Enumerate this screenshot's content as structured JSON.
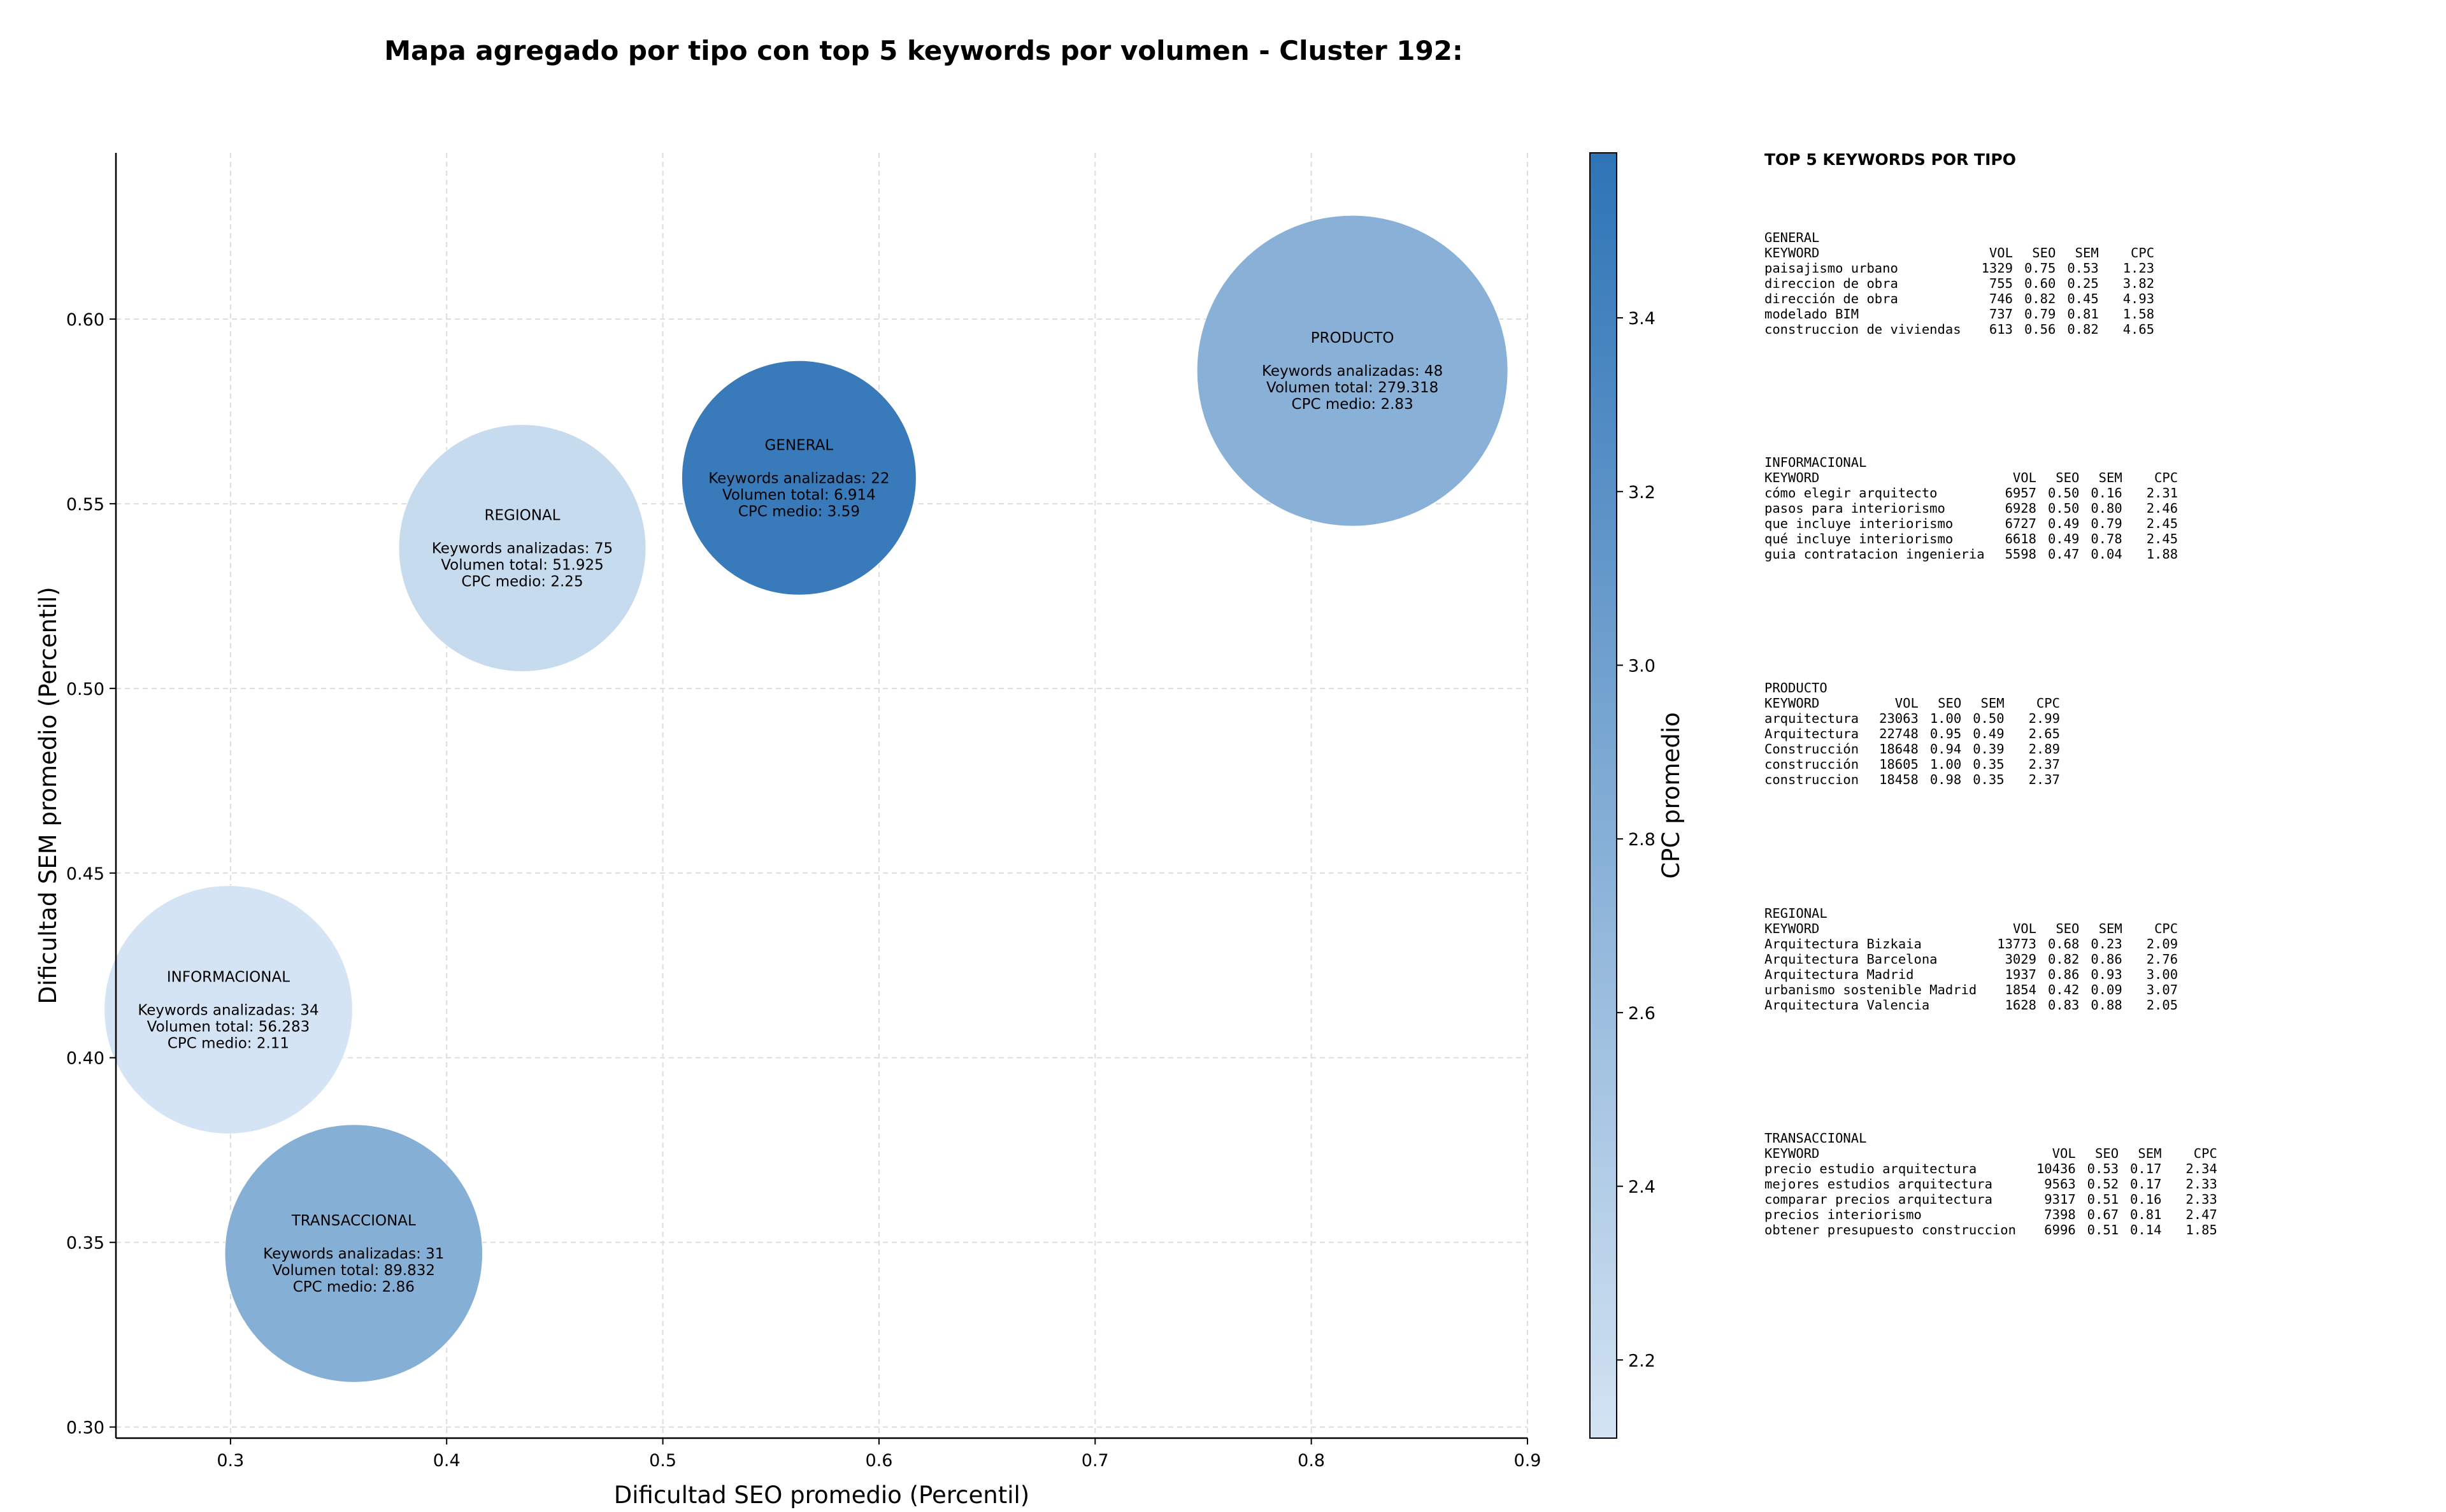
{
  "chart_data": {
    "type": "scatter",
    "title": "Mapa agregado por tipo con top 5 keywords por volumen - Cluster 192:",
    "xlabel": "Dificultad SEO promedio (Percentil)",
    "ylabel": "Dificultad SEM promedio (Percentil)",
    "xlim": [
      0.247,
      0.9
    ],
    "ylim": [
      0.297,
      0.645
    ],
    "xticks": [
      "0.3",
      "0.4",
      "0.5",
      "0.6",
      "0.7",
      "0.8",
      "0.9"
    ],
    "yticks": [
      "0.30",
      "0.35",
      "0.40",
      "0.45",
      "0.50",
      "0.55",
      "0.60"
    ],
    "grid": true,
    "colorbar": {
      "label": "CPC promedio",
      "range": [
        2.11,
        3.59
      ],
      "ticks": [
        "2.2",
        "2.4",
        "2.6",
        "2.8",
        "3.0",
        "3.2",
        "3.4"
      ],
      "color_low": "#d3e3f3",
      "color_high": "#2e74b6"
    },
    "points": [
      {
        "tipo": "GENERAL",
        "x": 0.563,
        "y": 0.557,
        "keywords_line": "Keywords analizadas: 22",
        "volumen_line": "Volumen total: 6.914",
        "cpc_line": "CPC medio: 3.59",
        "cpc": 3.59,
        "volumen": 6914
      },
      {
        "tipo": "INFORMACIONAL",
        "x": 0.299,
        "y": 0.413,
        "keywords_line": "Keywords analizadas: 34",
        "volumen_line": "Volumen total: 56.283",
        "cpc_line": "CPC medio: 2.11",
        "cpc": 2.11,
        "volumen": 56283
      },
      {
        "tipo": "PRODUCTO",
        "x": 0.819,
        "y": 0.586,
        "keywords_line": "Keywords analizadas: 48",
        "volumen_line": "Volumen total: 279.318",
        "cpc_line": "CPC medio: 2.83",
        "cpc": 2.83,
        "volumen": 279318
      },
      {
        "tipo": "REGIONAL",
        "x": 0.435,
        "y": 0.538,
        "keywords_line": "Keywords analizadas: 75",
        "volumen_line": "Volumen total: 51.925",
        "cpc_line": "CPC medio: 2.25",
        "cpc": 2.25,
        "volumen": 51925
      },
      {
        "tipo": "TRANSACCIONAL",
        "x": 0.357,
        "y": 0.347,
        "keywords_line": "Keywords analizadas: 31",
        "volumen_line": "Volumen total: 89.832",
        "cpc_line": "CPC medio: 2.86",
        "cpc": 2.86,
        "volumen": 89832
      }
    ]
  },
  "top5": {
    "heading": "TOP 5 KEYWORDS POR TIPO",
    "columns": [
      "KEYWORD",
      "VOL",
      "SEO",
      "SEM",
      "CPC"
    ],
    "groups": [
      {
        "name": "GENERAL",
        "rows": [
          [
            "paisajismo urbano",
            "1329",
            "0.75",
            "0.53",
            "1.23"
          ],
          [
            "direccion de obra",
            "755",
            "0.60",
            "0.25",
            "3.82"
          ],
          [
            "dirección de obra",
            "746",
            "0.82",
            "0.45",
            "4.93"
          ],
          [
            "modelado BIM",
            "737",
            "0.79",
            "0.81",
            "1.58"
          ],
          [
            "construccion de viviendas",
            "613",
            "0.56",
            "0.82",
            "4.65"
          ]
        ]
      },
      {
        "name": "INFORMACIONAL",
        "rows": [
          [
            "cómo elegir arquitecto",
            "6957",
            "0.50",
            "0.16",
            "2.31"
          ],
          [
            "pasos para interiorismo",
            "6928",
            "0.50",
            "0.80",
            "2.46"
          ],
          [
            "que incluye interiorismo",
            "6727",
            "0.49",
            "0.79",
            "2.45"
          ],
          [
            "qué incluye interiorismo",
            "6618",
            "0.49",
            "0.78",
            "2.45"
          ],
          [
            "guia contratacion ingenieria",
            "5598",
            "0.47",
            "0.04",
            "1.88"
          ]
        ]
      },
      {
        "name": "PRODUCTO",
        "rows": [
          [
            "arquitectura",
            "23063",
            "1.00",
            "0.50",
            "2.99"
          ],
          [
            "Arquitectura",
            "22748",
            "0.95",
            "0.49",
            "2.65"
          ],
          [
            "Construcción",
            "18648",
            "0.94",
            "0.39",
            "2.89"
          ],
          [
            "construcción",
            "18605",
            "1.00",
            "0.35",
            "2.37"
          ],
          [
            "construccion",
            "18458",
            "0.98",
            "0.35",
            "2.37"
          ]
        ]
      },
      {
        "name": "REGIONAL",
        "rows": [
          [
            "Arquitectura Bizkaia",
            "13773",
            "0.68",
            "0.23",
            "2.09"
          ],
          [
            "Arquitectura Barcelona",
            "3029",
            "0.82",
            "0.86",
            "2.76"
          ],
          [
            "Arquitectura Madrid",
            "1937",
            "0.86",
            "0.93",
            "3.00"
          ],
          [
            "urbanismo sostenible Madrid",
            "1854",
            "0.42",
            "0.09",
            "3.07"
          ],
          [
            "Arquitectura Valencia",
            "1628",
            "0.83",
            "0.88",
            "2.05"
          ]
        ]
      },
      {
        "name": "TRANSACCIONAL",
        "rows": [
          [
            "precio estudio arquitectura",
            "10436",
            "0.53",
            "0.17",
            "2.34"
          ],
          [
            "mejores estudios arquitectura",
            "9563",
            "0.52",
            "0.17",
            "2.33"
          ],
          [
            "comparar precios arquitectura",
            "9317",
            "0.51",
            "0.16",
            "2.33"
          ],
          [
            "precios interiorismo",
            "7398",
            "0.67",
            "0.81",
            "2.47"
          ],
          [
            "obtener presupuesto construccion",
            "6996",
            "0.51",
            "0.14",
            "1.85"
          ]
        ]
      }
    ]
  }
}
